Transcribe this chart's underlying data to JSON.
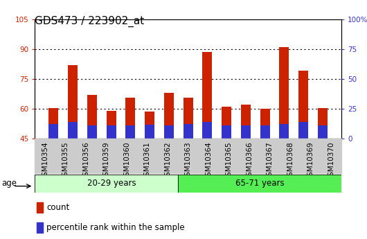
{
  "title": "GDS473 / 223902_at",
  "categories": [
    "GSM10354",
    "GSM10355",
    "GSM10356",
    "GSM10359",
    "GSM10360",
    "GSM10361",
    "GSM10362",
    "GSM10363",
    "GSM10364",
    "GSM10365",
    "GSM10366",
    "GSM10367",
    "GSM10368",
    "GSM10369",
    "GSM10370"
  ],
  "count_values": [
    60.5,
    82.0,
    67.0,
    59.0,
    65.5,
    58.5,
    68.0,
    65.5,
    88.5,
    61.0,
    62.0,
    60.0,
    91.0,
    79.0,
    60.5
  ],
  "percentile_values": [
    52.5,
    53.5,
    51.5,
    51.5,
    51.5,
    52.0,
    51.5,
    52.5,
    53.5,
    51.5,
    51.5,
    51.5,
    52.5,
    53.5,
    51.5
  ],
  "bar_bottom": 45,
  "count_color": "#cc2200",
  "percentile_color": "#3333cc",
  "ylim_left": [
    45,
    105
  ],
  "ylim_right": [
    0,
    100
  ],
  "yticks_left": [
    45,
    60,
    75,
    90,
    105
  ],
  "yticks_right": [
    0,
    25,
    50,
    75,
    100
  ],
  "ytick_labels_left": [
    "45",
    "60",
    "75",
    "90",
    "105"
  ],
  "ytick_labels_right": [
    "0",
    "25",
    "50",
    "75",
    "100%"
  ],
  "group1_label": "20-29 years",
  "group2_label": "65-71 years",
  "group1_count": 7,
  "group2_count": 8,
  "age_label": "age",
  "legend_count": "count",
  "legend_percentile": "percentile rank within the sample",
  "bg_plot": "#ffffff",
  "group1_bg": "#ccffcc",
  "group2_bg": "#55ee55",
  "bar_width": 0.5,
  "grid_color": "#000000",
  "title_fontsize": 11,
  "tick_fontsize": 7.5,
  "label_fontsize": 8.5
}
